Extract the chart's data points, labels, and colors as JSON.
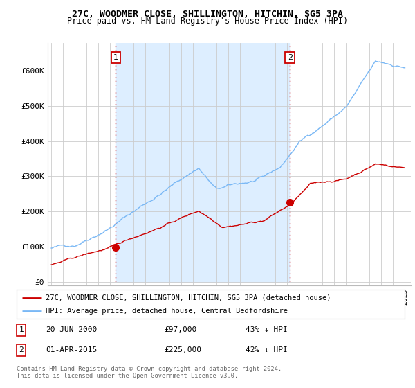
{
  "title": "27C, WOODMER CLOSE, SHILLINGTON, HITCHIN, SG5 3PA",
  "subtitle": "Price paid vs. HM Land Registry's House Price Index (HPI)",
  "ytick_labels": [
    "£0",
    "£100K",
    "£200K",
    "£300K",
    "£400K",
    "£500K",
    "£600K"
  ],
  "yticks": [
    0,
    100000,
    200000,
    300000,
    400000,
    500000,
    600000
  ],
  "hpi_color": "#7ab8f5",
  "price_color": "#cc0000",
  "shade_color": "#ddeeff",
  "vline_color": "#cc0000",
  "point1_date": 2000.47,
  "point1_price": 97000,
  "point2_date": 2015.25,
  "point2_price": 225000,
  "legend_line1": "27C, WOODMER CLOSE, SHILLINGTON, HITCHIN, SG5 3PA (detached house)",
  "legend_line2": "HPI: Average price, detached house, Central Bedfordshire",
  "background_color": "#ffffff",
  "grid_color": "#cccccc",
  "title_fontsize": 9.5,
  "subtitle_fontsize": 8.5,
  "tick_fontsize": 8,
  "footer": "Contains HM Land Registry data © Crown copyright and database right 2024.\nThis data is licensed under the Open Government Licence v3.0."
}
